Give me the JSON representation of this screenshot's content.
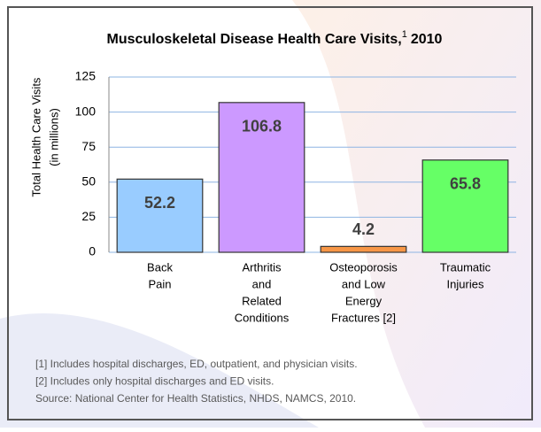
{
  "chart_data": {
    "type": "bar",
    "title": [
      "Musculoskeletal Disease Health Care Visits,",
      "1",
      "2010"
    ],
    "y_label": [
      "Total Health Care Visits",
      "(in millions)"
    ],
    "categories": [
      [
        "Back",
        "Pain"
      ],
      [
        "Arthritis",
        "and",
        "Related",
        "Conditions"
      ],
      [
        "Osteoporosis",
        "and Low",
        "Energy",
        "Fractures [2]"
      ],
      [
        "Traumatic",
        "Injuries"
      ]
    ],
    "values": [
      52.2,
      106.8,
      4.2,
      65.8
    ],
    "colors": [
      "#99ccff",
      "#cc99ff",
      "#f79646",
      "#66ff66"
    ],
    "ylim": [
      0,
      125
    ],
    "yticks": [
      0,
      25,
      50,
      75,
      100,
      125
    ],
    "grid": true,
    "footnotes": [
      "[1] Includes hospital discharges, ED, outpatient, and physician visits.",
      "[2] Includes only hospital discharges and ED visits.",
      "Source: National Center for Health Statistics, NHDS, NAMCS, 2010."
    ]
  }
}
